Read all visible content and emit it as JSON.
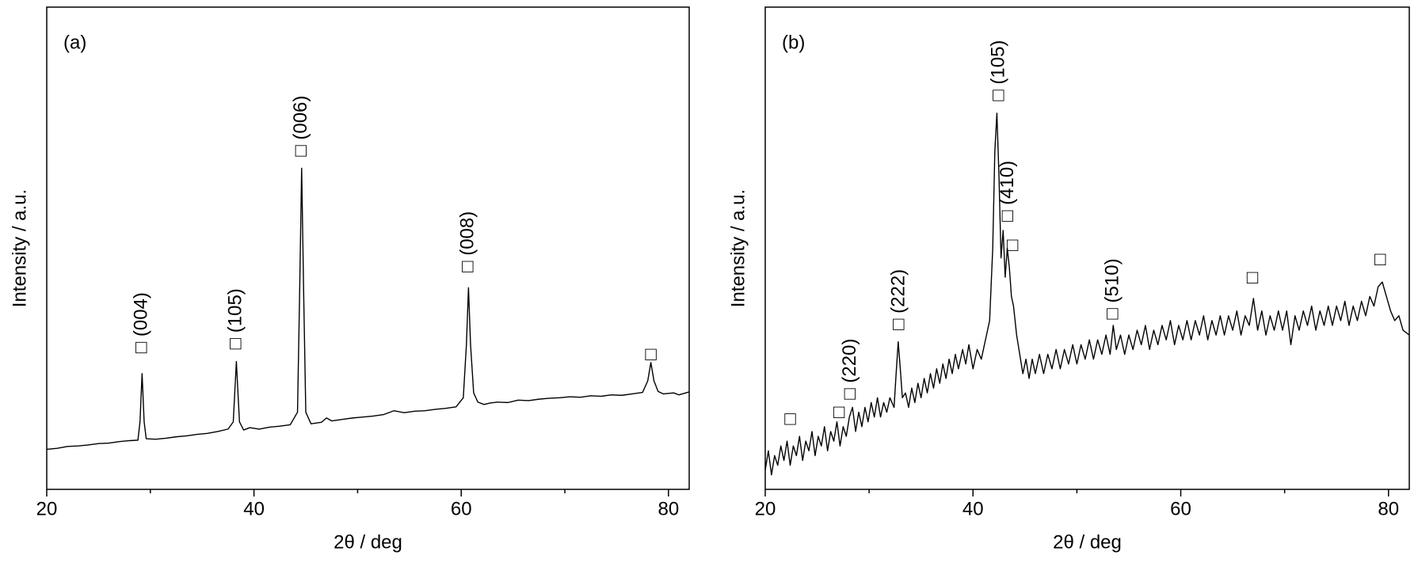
{
  "chart_data": [
    {
      "type": "line",
      "title": "(a)",
      "x_label": "2θ / deg",
      "y_label": "Intensity / a.u.",
      "color": "#000000",
      "xlim": [
        20,
        82
      ],
      "xticks": [
        20,
        40,
        60,
        80
      ],
      "xminor": [
        30,
        50,
        70
      ],
      "ylim": [
        0,
        100
      ],
      "x": [
        20,
        21,
        22,
        23,
        24,
        25,
        26,
        27,
        28,
        28.8,
        29.0,
        29.2,
        29.4,
        29.6,
        30.5,
        31.5,
        32.5,
        33.5,
        34.5,
        35.5,
        36.5,
        37.5,
        38.0,
        38.3,
        38.6,
        39.0,
        39.6,
        40.5,
        41.5,
        42.5,
        43.5,
        44.2,
        44.4,
        44.6,
        44.8,
        45.0,
        45.5,
        46.5,
        47.0,
        47.5,
        48.5,
        49.5,
        50.5,
        51.5,
        52.5,
        53.5,
        54.5,
        55.5,
        56.5,
        57.5,
        58.5,
        59.5,
        60.2,
        60.5,
        60.7,
        60.9,
        61.2,
        61.6,
        62.2,
        62.8,
        63.5,
        64.5,
        65.5,
        66.5,
        67.5,
        68.5,
        69.5,
        70.5,
        71.5,
        72.5,
        73.5,
        74.5,
        75.5,
        76.5,
        77.5,
        78.0,
        78.3,
        78.6,
        79.0,
        79.5,
        80.5,
        81.0,
        82.0
      ],
      "values": [
        8.3,
        8.5,
        8.9,
        9.0,
        9.2,
        9.5,
        9.6,
        9.9,
        10.1,
        10.2,
        14,
        24,
        14,
        10.5,
        10.4,
        10.6,
        10.9,
        11.1,
        11.4,
        11.6,
        12.0,
        12.5,
        14,
        26.5,
        14,
        12.3,
        12.8,
        12.5,
        12.9,
        13.1,
        13.4,
        16,
        40,
        66.6,
        40,
        16,
        13.6,
        13.9,
        14.8,
        14.2,
        14.5,
        14.8,
        15.0,
        15.2,
        15.5,
        16.3,
        15.9,
        16.2,
        16.3,
        16.6,
        16.8,
        17.1,
        19,
        30,
        41.8,
        30,
        20,
        18.1,
        17.6,
        17.9,
        18.1,
        18.0,
        18.5,
        18.4,
        18.7,
        18.9,
        19.0,
        19.2,
        19.1,
        19.4,
        19.3,
        19.6,
        19.5,
        19.8,
        20.1,
        22.5,
        26.3,
        22.5,
        20.3,
        19.8,
        20.0,
        19.6,
        20.2
      ],
      "annotations": [
        "□ (004)",
        "□ (105)",
        "□ (006)",
        "□ (008)",
        "□"
      ]
    },
    {
      "type": "line",
      "title": "(b)",
      "x_label": "2θ / deg",
      "y_label": "Intensity / a.u.",
      "color": "#000000",
      "xlim": [
        20,
        82
      ],
      "xticks": [
        20,
        40,
        60,
        80
      ],
      "xminor": [
        30,
        50,
        70
      ],
      "ylim": [
        0,
        100
      ],
      "x": [
        20,
        20.3,
        20.6,
        20.9,
        21.2,
        21.5,
        21.8,
        22.1,
        22.4,
        22.7,
        23,
        23.3,
        23.6,
        23.9,
        24.2,
        24.5,
        24.8,
        25.1,
        25.4,
        25.7,
        26,
        26.3,
        26.6,
        26.9,
        27.2,
        27.5,
        27.8,
        28.1,
        28.4,
        28.7,
        29,
        29.3,
        29.6,
        29.9,
        30.2,
        30.5,
        30.8,
        31.1,
        31.4,
        31.7,
        32,
        32.4,
        32.6,
        32.8,
        33.0,
        33.2,
        33.5,
        33.8,
        34.1,
        34.4,
        34.7,
        35,
        35.3,
        35.6,
        35.9,
        36.2,
        36.5,
        36.8,
        37.1,
        37.4,
        37.7,
        38,
        38.3,
        38.6,
        39,
        39.3,
        39.6,
        40,
        40.4,
        40.8,
        41.2,
        41.6,
        41.9,
        42.1,
        42.3,
        42.5,
        42.7,
        42.9,
        43.1,
        43.3,
        43.5,
        43.7,
        43.9,
        44.2,
        44.5,
        44.8,
        45.1,
        45.4,
        45.7,
        46,
        46.4,
        46.8,
        47.2,
        47.6,
        48,
        48.4,
        48.8,
        49.2,
        49.6,
        50,
        50.4,
        50.8,
        51.2,
        51.6,
        52,
        52.4,
        52.8,
        53.2,
        53.5,
        53.8,
        54.2,
        54.6,
        55,
        55.4,
        55.8,
        56.2,
        56.6,
        57,
        57.4,
        57.8,
        58.2,
        58.6,
        59,
        59.4,
        59.8,
        60.2,
        60.6,
        61,
        61.4,
        61.8,
        62.2,
        62.6,
        63,
        63.4,
        63.8,
        64.2,
        64.6,
        65,
        65.4,
        65.8,
        66.2,
        66.6,
        67,
        67.4,
        67.8,
        68.2,
        68.6,
        69,
        69.4,
        69.8,
        70.2,
        70.6,
        71,
        71.4,
        71.8,
        72.2,
        72.6,
        73,
        73.4,
        73.8,
        74.2,
        74.6,
        75,
        75.4,
        75.8,
        76.2,
        76.6,
        77,
        77.4,
        77.8,
        78.2,
        78.6,
        79,
        79.4,
        79.8,
        80.2,
        80.6,
        81,
        81.4,
        82
      ],
      "values": [
        4,
        8,
        3,
        7,
        5,
        9,
        6,
        10,
        5,
        9,
        7,
        11,
        6,
        10,
        8,
        12,
        7,
        11,
        9,
        13,
        8,
        12,
        10,
        14,
        9,
        13,
        11,
        15,
        17,
        12,
        16,
        13,
        17,
        14,
        18,
        15,
        19,
        15,
        18,
        16,
        19,
        17,
        24,
        30.6,
        25,
        19,
        20,
        17,
        21,
        18,
        22,
        19,
        23,
        20,
        24,
        21,
        25,
        22,
        26,
        23,
        27,
        24,
        28,
        25,
        29,
        26,
        30,
        25,
        29,
        27,
        31,
        35,
        50,
        70,
        78,
        65,
        48,
        53.7,
        44,
        50,
        46,
        40,
        38,
        32,
        28,
        24,
        27,
        23,
        27,
        24,
        28,
        24,
        28,
        25,
        29,
        25,
        29,
        26,
        30,
        26,
        30,
        27,
        31,
        27,
        31,
        28,
        32,
        28,
        34,
        29,
        32,
        28,
        32,
        29,
        33,
        30,
        34,
        29,
        33,
        30,
        34,
        31,
        35,
        30,
        34,
        31,
        35,
        31,
        35,
        32,
        36,
        31,
        35,
        32,
        36,
        32,
        36,
        33,
        37,
        32,
        36,
        34,
        39.6,
        33,
        37,
        32,
        36,
        33,
        37,
        33,
        37,
        30,
        36,
        33,
        37,
        34,
        38,
        33,
        37,
        34,
        38,
        34,
        38,
        35,
        39,
        34,
        38,
        35,
        39,
        36,
        40,
        38,
        42,
        43,
        40,
        37,
        35,
        36,
        33,
        32
      ],
      "annotations": [
        "□",
        "□",
        "□ (220)",
        "□ (222)",
        "□ (105)",
        "□ (410)",
        "□",
        "□ (510)",
        "□",
        "□"
      ]
    }
  ]
}
